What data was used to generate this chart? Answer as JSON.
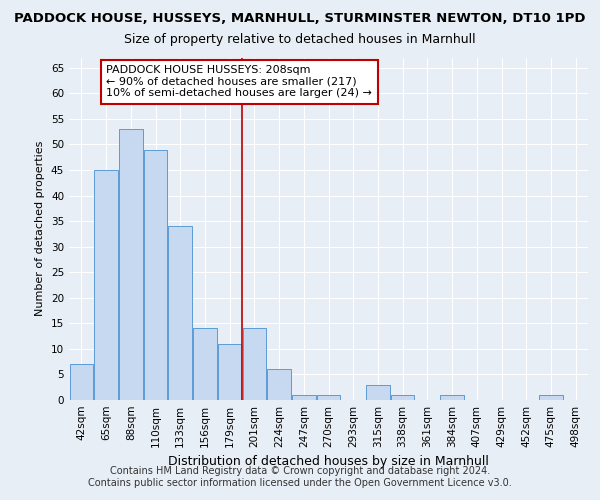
{
  "title1": "PADDOCK HOUSE, HUSSEYS, MARNHULL, STURMINSTER NEWTON, DT10 1PD",
  "title2": "Size of property relative to detached houses in Marnhull",
  "xlabel": "Distribution of detached houses by size in Marnhull",
  "ylabel": "Number of detached properties",
  "categories": [
    "42sqm",
    "65sqm",
    "88sqm",
    "110sqm",
    "133sqm",
    "156sqm",
    "179sqm",
    "201sqm",
    "224sqm",
    "247sqm",
    "270sqm",
    "293sqm",
    "315sqm",
    "338sqm",
    "361sqm",
    "384sqm",
    "407sqm",
    "429sqm",
    "452sqm",
    "475sqm",
    "498sqm"
  ],
  "values": [
    7,
    45,
    53,
    49,
    34,
    14,
    11,
    14,
    6,
    1,
    1,
    0,
    3,
    1,
    0,
    1,
    0,
    0,
    0,
    1,
    0
  ],
  "bar_color": "#c6d9f0",
  "bar_edge_color": "#5b9bd5",
  "vline_pos": 6.5,
  "vline_color": "#c00000",
  "annotation_text": "PADDOCK HOUSE HUSSEYS: 208sqm\n← 90% of detached houses are smaller (217)\n10% of semi-detached houses are larger (24) →",
  "annotation_box_color": "#ffffff",
  "annotation_box_edge": "#c00000",
  "ylim": [
    0,
    67
  ],
  "yticks": [
    0,
    5,
    10,
    15,
    20,
    25,
    30,
    35,
    40,
    45,
    50,
    55,
    60,
    65
  ],
  "background_color": "#e8eef5",
  "plot_background": "#e8eef5",
  "footer1": "Contains HM Land Registry data © Crown copyright and database right 2024.",
  "footer2": "Contains public sector information licensed under the Open Government Licence v3.0.",
  "title1_fontsize": 9.5,
  "title2_fontsize": 9,
  "xlabel_fontsize": 9,
  "ylabel_fontsize": 8,
  "tick_fontsize": 7.5,
  "annotation_fontsize": 8,
  "footer_fontsize": 7
}
